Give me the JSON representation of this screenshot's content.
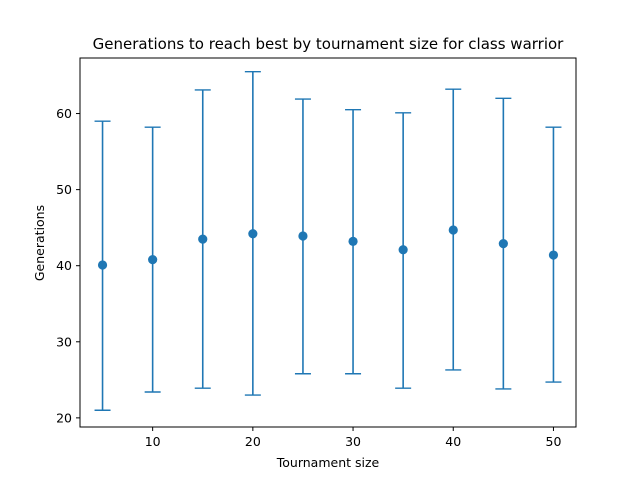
{
  "chart_data": {
    "type": "scatter",
    "title": "Generations to reach best by tournament size for class warrior",
    "xlabel": "Tournament size",
    "ylabel": "Generations",
    "xlim": [
      2.75,
      52.25
    ],
    "ylim": [
      18.8,
      67.3
    ],
    "xticks": [
      10,
      20,
      30,
      40,
      50
    ],
    "yticks": [
      20,
      30,
      40,
      50,
      60
    ],
    "grid": false,
    "series": [
      {
        "color": "#1f77b4",
        "x": [
          5,
          10,
          15,
          20,
          25,
          30,
          35,
          40,
          45,
          50
        ],
        "y": [
          40.1,
          40.8,
          43.5,
          44.2,
          43.9,
          43.2,
          42.1,
          44.7,
          42.9,
          41.4
        ],
        "err_low": [
          21.0,
          23.4,
          23.9,
          23.0,
          25.8,
          25.8,
          23.9,
          26.3,
          23.8,
          24.7
        ],
        "err_high": [
          59.0,
          58.2,
          63.1,
          65.5,
          61.9,
          60.5,
          60.1,
          63.2,
          62.0,
          58.2
        ]
      }
    ]
  }
}
